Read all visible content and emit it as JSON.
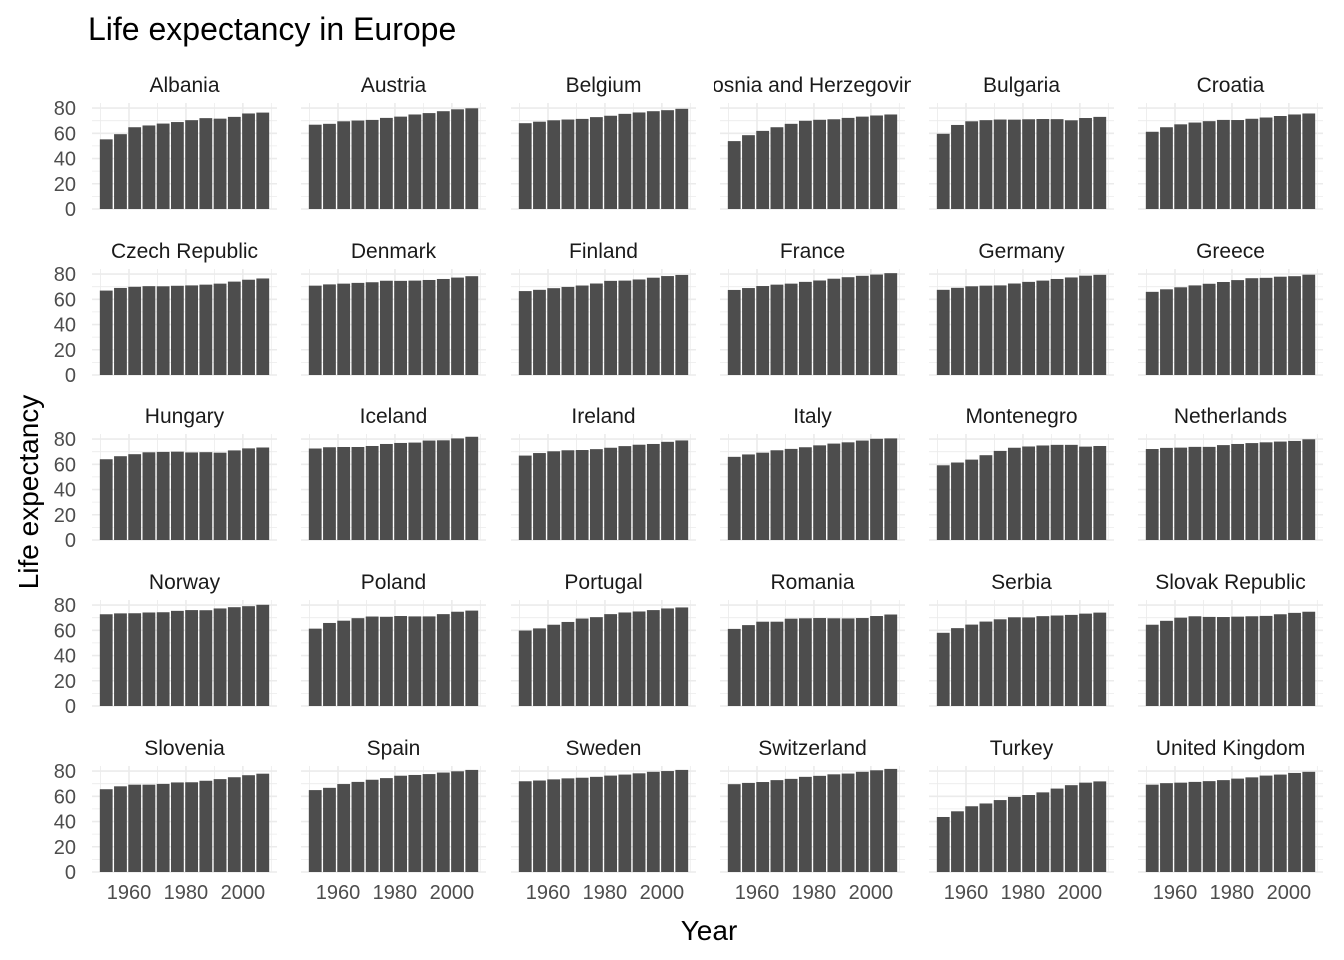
{
  "chart_data": {
    "type": "bar",
    "title": "Life expectancy in Europe",
    "xlabel": "Year",
    "ylabel": "Life expectancy",
    "x_ticks": [
      1960,
      1980,
      2000
    ],
    "y_ticks": [
      0,
      20,
      40,
      60,
      80
    ],
    "xlim": [
      1947,
      2012
    ],
    "ylim": [
      0,
      84
    ],
    "grid": true,
    "facet_columns": 6,
    "years": [
      1952,
      1957,
      1962,
      1967,
      1972,
      1977,
      1982,
      1987,
      1992,
      1997,
      2002,
      2007
    ],
    "bar_color": "#4d4d4d",
    "grid_color": "#ebebeb",
    "panels": [
      {
        "country": "Albania",
        "values": [
          55.2,
          59.3,
          64.8,
          66.2,
          67.7,
          68.9,
          70.4,
          72.0,
          71.6,
          73.0,
          75.7,
          76.4
        ]
      },
      {
        "country": "Austria",
        "values": [
          66.8,
          67.5,
          69.5,
          70.1,
          70.6,
          72.2,
          73.2,
          74.9,
          76.0,
          77.5,
          79.0,
          79.8
        ]
      },
      {
        "country": "Belgium",
        "values": [
          68.0,
          69.2,
          70.3,
          70.9,
          71.4,
          72.8,
          73.9,
          75.4,
          76.5,
          77.5,
          78.3,
          79.4
        ]
      },
      {
        "country": "Bosnia and Herzegovina",
        "values": [
          53.8,
          58.5,
          61.9,
          64.8,
          67.5,
          69.9,
          70.7,
          71.1,
          72.2,
          73.2,
          74.1,
          74.9
        ]
      },
      {
        "country": "Bulgaria",
        "values": [
          59.6,
          66.6,
          69.5,
          70.4,
          70.9,
          70.8,
          71.1,
          71.3,
          71.2,
          70.3,
          72.1,
          73.0
        ]
      },
      {
        "country": "Croatia",
        "values": [
          61.2,
          64.8,
          67.1,
          68.5,
          69.6,
          70.6,
          70.5,
          71.5,
          72.5,
          73.7,
          74.9,
          75.7
        ]
      },
      {
        "country": "Czech Republic",
        "values": [
          66.9,
          69.0,
          69.9,
          70.4,
          70.3,
          70.7,
          71.0,
          71.6,
          72.4,
          74.0,
          75.5,
          76.5
        ]
      },
      {
        "country": "Denmark",
        "values": [
          70.8,
          71.8,
          72.4,
          73.0,
          73.5,
          74.7,
          74.6,
          74.8,
          75.3,
          76.1,
          77.2,
          78.3
        ]
      },
      {
        "country": "Finland",
        "values": [
          66.5,
          67.5,
          68.8,
          69.8,
          70.9,
          72.5,
          74.6,
          74.8,
          75.7,
          77.1,
          78.4,
          79.3
        ]
      },
      {
        "country": "France",
        "values": [
          67.4,
          68.9,
          70.5,
          71.6,
          72.4,
          73.8,
          74.9,
          76.3,
          77.5,
          78.6,
          79.6,
          80.7
        ]
      },
      {
        "country": "Germany",
        "values": [
          67.5,
          69.1,
          70.3,
          70.8,
          71.0,
          72.5,
          73.8,
          74.8,
          76.1,
          77.3,
          78.7,
          79.4
        ]
      },
      {
        "country": "Greece",
        "values": [
          65.9,
          67.9,
          69.5,
          71.0,
          72.3,
          73.7,
          75.2,
          76.7,
          77.0,
          77.9,
          78.3,
          79.5
        ]
      },
      {
        "country": "Hungary",
        "values": [
          64.0,
          66.4,
          68.0,
          69.5,
          69.8,
          70.0,
          69.4,
          69.6,
          69.2,
          71.0,
          72.6,
          73.3
        ]
      },
      {
        "country": "Iceland",
        "values": [
          72.5,
          73.5,
          73.7,
          73.7,
          74.5,
          76.1,
          76.9,
          77.2,
          78.8,
          79.0,
          80.5,
          81.8
        ]
      },
      {
        "country": "Ireland",
        "values": [
          66.9,
          68.9,
          70.3,
          71.1,
          71.3,
          72.0,
          73.1,
          74.4,
          75.5,
          76.1,
          77.8,
          78.9
        ]
      },
      {
        "country": "Italy",
        "values": [
          65.9,
          67.8,
          69.2,
          71.1,
          72.2,
          73.5,
          75.0,
          76.4,
          77.4,
          78.8,
          80.2,
          80.5
        ]
      },
      {
        "country": "Montenegro",
        "values": [
          59.2,
          61.4,
          63.7,
          67.2,
          70.6,
          73.1,
          74.1,
          74.9,
          75.4,
          75.4,
          74.0,
          74.5
        ]
      },
      {
        "country": "Netherlands",
        "values": [
          72.1,
          73.0,
          73.2,
          73.8,
          73.8,
          75.2,
          76.1,
          76.8,
          77.4,
          78.0,
          78.5,
          79.8
        ]
      },
      {
        "country": "Norway",
        "values": [
          72.7,
          73.4,
          73.5,
          74.1,
          74.3,
          75.4,
          76.0,
          75.9,
          77.3,
          78.3,
          79.1,
          80.2
        ]
      },
      {
        "country": "Poland",
        "values": [
          61.3,
          65.8,
          67.6,
          69.6,
          70.9,
          70.7,
          71.3,
          71.0,
          71.0,
          72.8,
          74.7,
          75.6
        ]
      },
      {
        "country": "Portugal",
        "values": [
          59.8,
          61.5,
          64.4,
          66.6,
          69.3,
          70.4,
          72.8,
          74.1,
          74.9,
          76.0,
          77.3,
          78.1
        ]
      },
      {
        "country": "Romania",
        "values": [
          61.1,
          64.1,
          66.8,
          66.8,
          69.2,
          69.5,
          69.7,
          69.5,
          69.4,
          69.7,
          71.3,
          72.5
        ]
      },
      {
        "country": "Serbia",
        "values": [
          58.0,
          61.7,
          64.5,
          66.9,
          68.7,
          70.3,
          70.2,
          71.2,
          71.7,
          72.2,
          73.2,
          74.0
        ]
      },
      {
        "country": "Slovak Republic",
        "values": [
          64.4,
          67.5,
          70.0,
          71.1,
          70.6,
          70.5,
          70.8,
          71.1,
          71.4,
          72.7,
          73.8,
          74.7
        ]
      },
      {
        "country": "Slovenia",
        "values": [
          65.6,
          67.9,
          69.2,
          69.2,
          69.8,
          70.97,
          71.1,
          72.3,
          73.6,
          75.1,
          76.7,
          77.9
        ]
      },
      {
        "country": "Spain",
        "values": [
          64.9,
          66.7,
          69.7,
          71.4,
          73.1,
          74.4,
          76.3,
          76.9,
          77.6,
          78.8,
          79.8,
          80.9
        ]
      },
      {
        "country": "Sweden",
        "values": [
          71.9,
          72.5,
          73.4,
          74.2,
          74.7,
          75.4,
          76.4,
          77.2,
          78.2,
          79.4,
          80.0,
          80.9
        ]
      },
      {
        "country": "Switzerland",
        "values": [
          69.6,
          70.6,
          71.3,
          72.8,
          73.8,
          75.4,
          76.2,
          77.4,
          78.0,
          79.4,
          80.6,
          81.7
        ]
      },
      {
        "country": "Turkey",
        "values": [
          43.6,
          48.1,
          52.1,
          54.3,
          57.0,
          59.5,
          61.0,
          63.1,
          66.1,
          68.8,
          70.8,
          71.8
        ]
      },
      {
        "country": "United Kingdom",
        "values": [
          69.2,
          70.4,
          70.8,
          71.4,
          72.0,
          72.8,
          74.0,
          75.0,
          76.4,
          77.2,
          78.5,
          79.4
        ]
      }
    ]
  }
}
